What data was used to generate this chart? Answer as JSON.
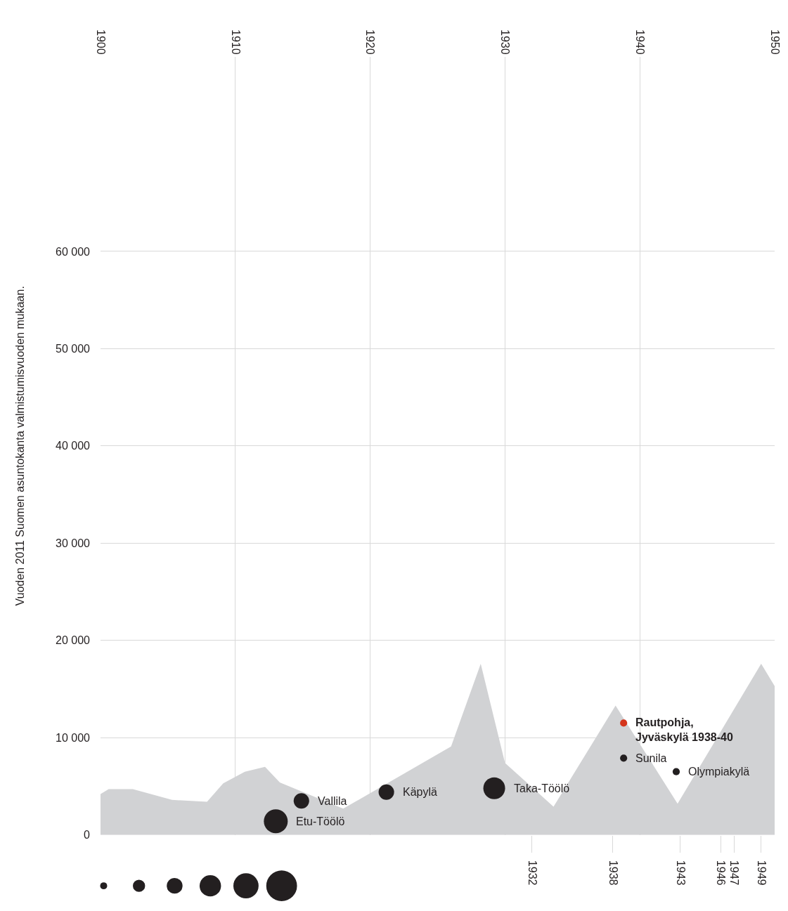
{
  "chart_data": {
    "type": "area",
    "ylabel": "Vuoden 2011 Suomen asuntokanta valmistumisvuoden mukaan.",
    "xlim": [
      1900,
      1950
    ],
    "xticks": [
      1900,
      1910,
      1920,
      1930,
      1940,
      1950
    ],
    "x2lim": [
      1900,
      1950
    ],
    "x2ticks": [
      1932,
      1938,
      1943,
      1946,
      1947,
      1949
    ],
    "ylim": [
      0,
      80000
    ],
    "yticks": [
      0,
      {
        "value": 10000,
        "label": "10 000"
      },
      {
        "value": 20000,
        "label": "20 000"
      },
      {
        "value": 30000,
        "label": "30 000"
      },
      {
        "value": 40000,
        "label": "40 000"
      },
      {
        "value": 50000,
        "label": "50 000"
      },
      {
        "value": 60000,
        "label": "60 000"
      }
    ],
    "grid": true,
    "series": [
      {
        "color": "#d1d2d4",
        "x": [
          1900.0,
          1900.6,
          1902.4,
          1905.3,
          1907.9,
          1909.1,
          1910.7,
          1912.2,
          1913.3,
          1918.0,
          1926.0,
          1928.2,
          1930.0,
          1933.6,
          1938.2,
          1942.8,
          1949.0,
          1950.0
        ],
        "values": [
          4200,
          4700,
          4700,
          3600,
          3400,
          5300,
          6500,
          7000,
          5400,
          2700,
          9100,
          17600,
          7400,
          2900,
          13300,
          3200,
          17600,
          15300
        ]
      },
      {
        "type": "bubble",
        "color": "#231f20",
        "colors": [
          "#231f20",
          "#231f20",
          "#231f20",
          "#231f20",
          "#d4351c",
          "#231f20",
          "#231f20"
        ],
        "x": [
          1913.0,
          1914.9,
          1921.2,
          1929.2,
          1938.8,
          1938.8,
          1942.7
        ],
        "values": [
          1400,
          3500,
          4400,
          4800,
          11500,
          7900,
          6500
        ],
        "sizes": [
          1,
          0.42,
          0.42,
          0.83,
          0.09,
          0.09,
          0.09
        ]
      }
    ],
    "annotations": [
      {
        "text": "Etu-Töölö",
        "x": 1913.0,
        "y": 1400
      },
      {
        "text": "Vallila",
        "x": 1914.9,
        "y": 3500
      },
      {
        "text": "Käpylä",
        "x": 1921.2,
        "y": 4400
      },
      {
        "text": "Taka-Töölö",
        "x": 1929.2,
        "y": 4800
      },
      {
        "text": "Rautpohja,\nJyväskylä 1938-40",
        "x": 1938.8,
        "y": 11500
      },
      {
        "text": "Sunila",
        "x": 1938.8,
        "y": 7900
      },
      {
        "text": "Olympiakylä",
        "x": 1942.7,
        "y": 6500
      }
    ]
  }
}
